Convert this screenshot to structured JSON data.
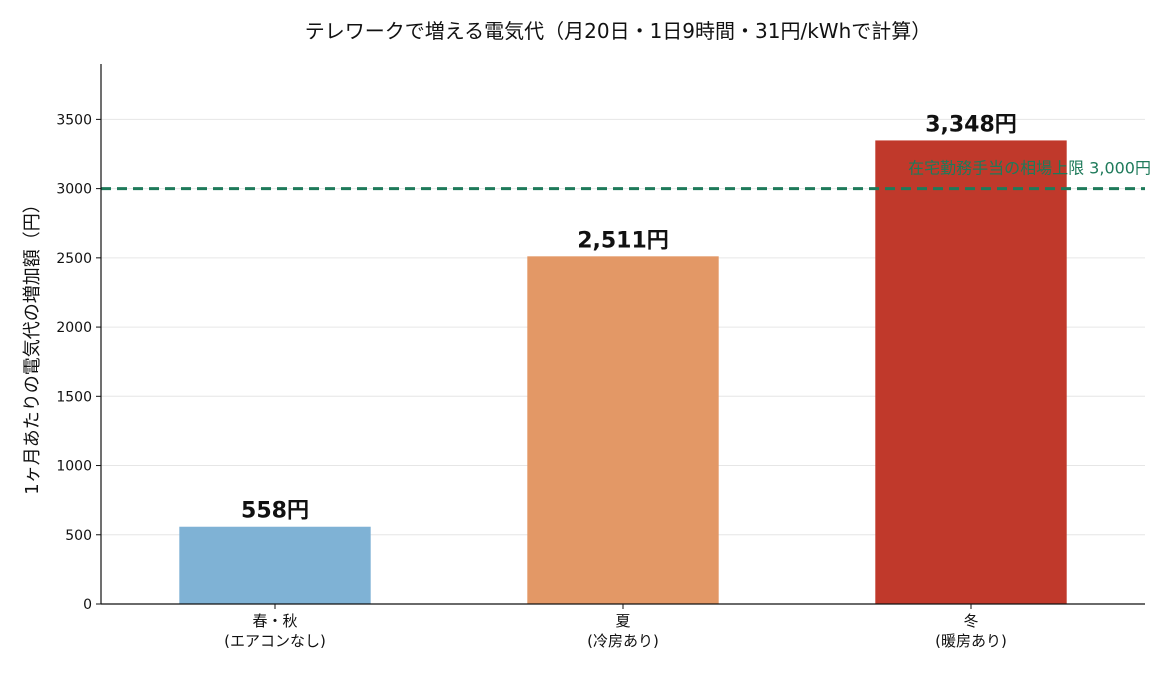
{
  "chart_data": {
    "type": "bar",
    "title": "テレワークで増える電気代（月20日・1日9時間・31円/kWhで計算）",
    "xlabel": "",
    "ylabel": "1ヶ月あたりの電気代の増加額（円）",
    "categories": [
      "春・秋\n(エアコンなし)",
      "夏\n(冷房あり)",
      "冬\n(暖房あり)"
    ],
    "values": [
      558,
      2511,
      3348
    ],
    "value_labels": [
      "558円",
      "2,511円",
      "3,348円"
    ],
    "bar_colors": [
      "#7fb2d5",
      "#e39866",
      "#c0392b"
    ],
    "ylim": [
      0,
      3900
    ],
    "yticks": [
      0,
      500,
      1000,
      1500,
      2000,
      2500,
      3000,
      3500
    ],
    "grid": "horizontal",
    "reference_line": {
      "value": 3000,
      "label": "在宅勤務手当の相場上限 3,000円",
      "color": "#1e7a5a",
      "style": "dashed"
    }
  }
}
